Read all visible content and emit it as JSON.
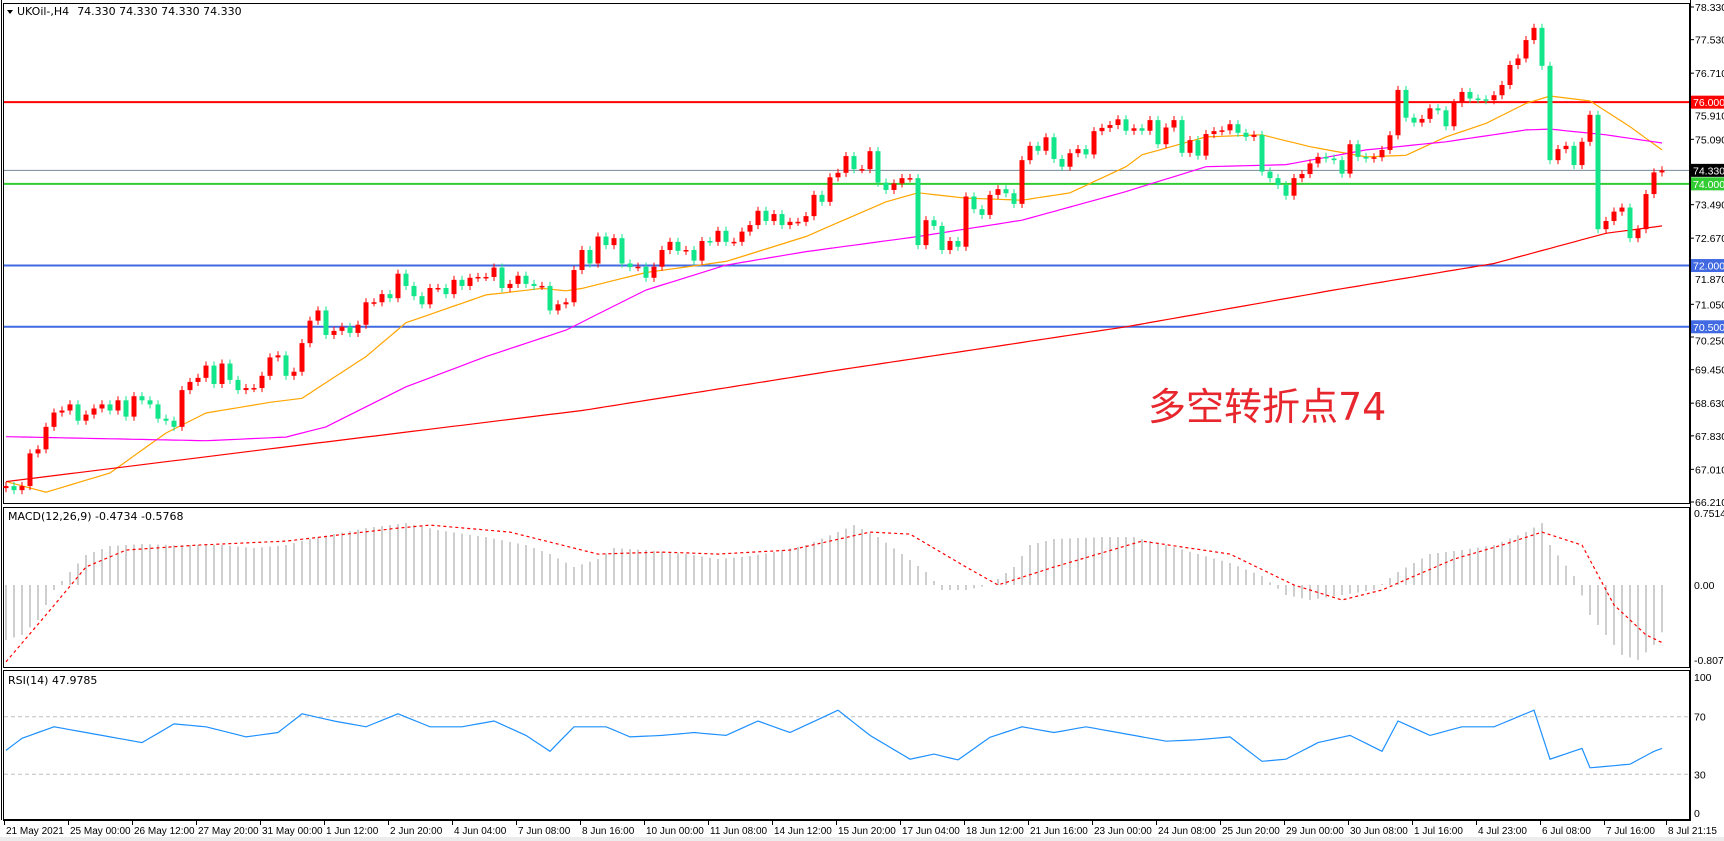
{
  "header": {
    "menu_icon": "triangle-down-icon",
    "symbol_label": "UKOil-,H4",
    "ohlc": "74.330 74.330 74.330 74.330"
  },
  "annotation": {
    "text": "多空转折点74",
    "color": "#e8262e"
  },
  "chart_data": [
    {
      "type": "candlestick",
      "panel": "price",
      "timeframe": "H4",
      "symbol": "UKOil-",
      "colors": {
        "up": "#ff0000",
        "down": "#13e58a",
        "ma_fast": "#ffa500",
        "ma_mid": "#ff00ff",
        "ma_slow": "#ff0000"
      },
      "ylim": [
        66.21,
        78.33
      ],
      "y_ticks": [
        "78.330",
        "77.530",
        "76.710",
        "75.910",
        "75.090",
        "73.490",
        "72.670",
        "71.870",
        "71.050",
        "70.250",
        "69.450",
        "68.630",
        "67.830",
        "67.010",
        "66.210"
      ],
      "first_open": 66.55,
      "closes": [
        66.6,
        66.5,
        66.6,
        67.4,
        67.5,
        68.05,
        68.4,
        68.45,
        68.6,
        68.2,
        68.35,
        68.5,
        68.6,
        68.45,
        68.7,
        68.3,
        68.8,
        68.7,
        68.6,
        68.25,
        68.2,
        68.05,
        68.95,
        69.15,
        69.25,
        69.55,
        69.1,
        69.6,
        69.2,
        68.95,
        69.0,
        69.0,
        69.3,
        69.75,
        69.8,
        69.3,
        69.4,
        70.1,
        70.65,
        70.9,
        70.3,
        70.4,
        70.5,
        70.35,
        70.55,
        71.1,
        71.1,
        71.3,
        71.2,
        71.8,
        71.5,
        71.25,
        71.05,
        71.45,
        71.45,
        71.3,
        71.65,
        71.5,
        71.7,
        71.72,
        71.72,
        71.95,
        71.45,
        71.55,
        71.75,
        71.55,
        71.5,
        71.5,
        70.9,
        71.05,
        71.1,
        71.89,
        72.38,
        72.05,
        72.71,
        72.5,
        72.67,
        72.05,
        71.96,
        71.97,
        71.7,
        71.97,
        72.38,
        72.58,
        72.36,
        72.38,
        72.12,
        72.6,
        72.58,
        72.85,
        72.58,
        72.58,
        72.83,
        72.99,
        73.34,
        73.09,
        73.26,
        72.99,
        73.07,
        73.07,
        73.21,
        73.73,
        73.56,
        74.16,
        74.27,
        74.68,
        74.36,
        74.36,
        74.8,
        74.03,
        73.85,
        74.01,
        74.14,
        74.14,
        72.5,
        73.11,
        72.97,
        72.38,
        72.6,
        72.46,
        73.69,
        73.38,
        73.24,
        73.73,
        73.87,
        73.77,
        73.51,
        74.58,
        74.93,
        74.81,
        75.14,
        74.61,
        74.42,
        74.75,
        74.85,
        74.72,
        75.29,
        75.37,
        75.44,
        75.58,
        75.3,
        75.36,
        75.3,
        75.56,
        74.97,
        75.38,
        75.56,
        74.76,
        75.07,
        74.69,
        75.22,
        75.29,
        75.31,
        75.46,
        75.25,
        75.15,
        75.2,
        74.3,
        74.14,
        73.97,
        73.71,
        74.14,
        74.24,
        74.5,
        74.66,
        74.62,
        74.58,
        74.25,
        74.97,
        74.66,
        74.62,
        74.65,
        74.83,
        75.19,
        76.3,
        75.62,
        75.5,
        75.59,
        75.85,
        75.8,
        75.41,
        75.98,
        76.25,
        76.09,
        76.07,
        76.05,
        76.17,
        76.42,
        76.91,
        77.07,
        77.52,
        77.82,
        76.89,
        74.58,
        74.85,
        74.93,
        74.46,
        75.03,
        75.69,
        72.89,
        73.09,
        73.32,
        73.42,
        72.67,
        72.89,
        73.75,
        74.28,
        74.33
      ],
      "moving_averages": [
        {
          "color": "#ffa500",
          "points": [
            [
              0,
              66.71
            ],
            [
              5,
              66.45
            ],
            [
              13,
              66.92
            ],
            [
              20,
              67.9
            ],
            [
              25,
              68.39
            ],
            [
              33,
              68.65
            ],
            [
              37,
              68.75
            ],
            [
              45,
              69.77
            ],
            [
              50,
              70.6
            ],
            [
              60,
              71.28
            ],
            [
              67,
              71.44
            ],
            [
              70,
              71.38
            ],
            [
              72,
              71.44
            ],
            [
              80,
              71.83
            ],
            [
              90,
              72.1
            ],
            [
              100,
              72.71
            ],
            [
              110,
              73.56
            ],
            [
              114,
              73.78
            ],
            [
              120,
              73.65
            ],
            [
              127,
              73.6
            ],
            [
              133,
              73.78
            ],
            [
              140,
              74.42
            ],
            [
              142,
              74.71
            ],
            [
              150,
              75.15
            ],
            [
              157,
              75.2
            ],
            [
              163,
              74.91
            ],
            [
              170,
              74.66
            ],
            [
              175,
              74.7
            ],
            [
              180,
              75.15
            ],
            [
              185,
              75.48
            ],
            [
              190,
              75.97
            ],
            [
              193,
              76.15
            ],
            [
              198,
              76.03
            ],
            [
              203,
              75.4
            ],
            [
              207,
              74.83
            ]
          ]
        },
        {
          "color": "#ff00ff",
          "points": [
            [
              0,
              67.81
            ],
            [
              25,
              67.71
            ],
            [
              35,
              67.8
            ],
            [
              40,
              68.05
            ],
            [
              50,
              69.03
            ],
            [
              60,
              69.77
            ],
            [
              70,
              70.42
            ],
            [
              80,
              71.4
            ],
            [
              90,
              72.01
            ],
            [
              100,
              72.34
            ],
            [
              114,
              72.71
            ],
            [
              127,
              73.11
            ],
            [
              140,
              73.81
            ],
            [
              150,
              74.42
            ],
            [
              160,
              74.47
            ],
            [
              170,
              74.83
            ],
            [
              180,
              75.03
            ],
            [
              190,
              75.32
            ],
            [
              193,
              75.34
            ],
            [
              200,
              75.2
            ],
            [
              207,
              75.0
            ]
          ]
        },
        {
          "color": "#ff0000",
          "points": [
            [
              0,
              66.71
            ],
            [
              35,
              67.56
            ],
            [
              72,
              68.45
            ],
            [
              104,
              69.44
            ],
            [
              120,
              69.91
            ],
            [
              140,
              70.5
            ],
            [
              166,
              71.4
            ],
            [
              186,
              72.05
            ],
            [
              200,
              72.79
            ],
            [
              207,
              72.97
            ]
          ]
        }
      ],
      "horizontal_levels": [
        {
          "price": "76.000",
          "value": 76.0,
          "color": "#ff0000"
        },
        {
          "price": "74.000",
          "value": 74.0,
          "color": "#32cd32"
        },
        {
          "price": "72.000",
          "value": 72.0,
          "color": "#4169e1"
        },
        {
          "price": "70.500",
          "value": 70.5,
          "color": "#4169e1"
        }
      ],
      "current_price": {
        "label": "74.330",
        "value": 74.33,
        "color": "#778899"
      }
    },
    {
      "type": "histogram+line",
      "panel": "macd",
      "title": "MACD(12,26,9) -0.4734 -0.5768",
      "ylim": [
        -0.8076,
        0.7514
      ],
      "y_ticks": [
        "0.7514",
        "0.00",
        "-0.8076"
      ],
      "histogram_color": "#bdbdbd",
      "signal_color": "#ff0000",
      "histogram": [
        [
          0,
          -0.55
        ],
        [
          2,
          -0.5
        ],
        [
          4,
          -0.35
        ],
        [
          5,
          -0.2
        ],
        [
          6,
          -0.05
        ],
        [
          8,
          0.13
        ],
        [
          10,
          0.3
        ],
        [
          13,
          0.39
        ],
        [
          17,
          0.41
        ],
        [
          21,
          0.4
        ],
        [
          27,
          0.4
        ],
        [
          31,
          0.37
        ],
        [
          35,
          0.4
        ],
        [
          39,
          0.48
        ],
        [
          45,
          0.57
        ],
        [
          50,
          0.62
        ],
        [
          54,
          0.55
        ],
        [
          60,
          0.48
        ],
        [
          65,
          0.4
        ],
        [
          68,
          0.31
        ],
        [
          71,
          0.18
        ],
        [
          74,
          0.26
        ],
        [
          76,
          0.37
        ],
        [
          80,
          0.35
        ],
        [
          85,
          0.31
        ],
        [
          89,
          0.26
        ],
        [
          93,
          0.29
        ],
        [
          96,
          0.33
        ],
        [
          100,
          0.4
        ],
        [
          104,
          0.53
        ],
        [
          106,
          0.6
        ],
        [
          109,
          0.48
        ],
        [
          112,
          0.31
        ],
        [
          115,
          0.13
        ],
        [
          117,
          -0.05
        ],
        [
          120,
          -0.05
        ],
        [
          123,
          0.0
        ],
        [
          126,
          0.18
        ],
        [
          128,
          0.4
        ],
        [
          131,
          0.46
        ],
        [
          137,
          0.48
        ],
        [
          141,
          0.48
        ],
        [
          145,
          0.4
        ],
        [
          149,
          0.31
        ],
        [
          153,
          0.22
        ],
        [
          157,
          0.09
        ],
        [
          160,
          -0.1
        ],
        [
          163,
          -0.15
        ],
        [
          167,
          -0.1
        ],
        [
          171,
          -0.05
        ],
        [
          174,
          0.13
        ],
        [
          178,
          0.31
        ],
        [
          182,
          0.35
        ],
        [
          186,
          0.4
        ],
        [
          190,
          0.53
        ],
        [
          192,
          0.62
        ],
        [
          193,
          0.4
        ],
        [
          196,
          0.09
        ],
        [
          198,
          -0.3
        ],
        [
          202,
          -0.7
        ],
        [
          204,
          -0.75
        ],
        [
          206,
          -0.6
        ],
        [
          207,
          -0.4734
        ]
      ],
      "signal": [
        [
          0,
          -0.77
        ],
        [
          5,
          -0.3
        ],
        [
          10,
          0.18
        ],
        [
          15,
          0.35
        ],
        [
          24,
          0.4
        ],
        [
          35,
          0.44
        ],
        [
          49,
          0.57
        ],
        [
          53,
          0.6
        ],
        [
          63,
          0.53
        ],
        [
          74,
          0.31
        ],
        [
          82,
          0.33
        ],
        [
          89,
          0.31
        ],
        [
          98,
          0.35
        ],
        [
          108,
          0.53
        ],
        [
          113,
          0.51
        ],
        [
          120,
          0.18
        ],
        [
          124,
          0.0
        ],
        [
          131,
          0.18
        ],
        [
          142,
          0.44
        ],
        [
          153,
          0.31
        ],
        [
          161,
          0.0
        ],
        [
          167,
          -0.15
        ],
        [
          172,
          -0.05
        ],
        [
          181,
          0.26
        ],
        [
          187,
          0.4
        ],
        [
          192,
          0.53
        ],
        [
          197,
          0.4
        ],
        [
          201,
          -0.2
        ],
        [
          205,
          -0.5
        ],
        [
          207,
          -0.5768
        ]
      ]
    },
    {
      "type": "line",
      "panel": "rsi",
      "title": "RSI(14) 47.9785",
      "ylim": [
        0,
        100
      ],
      "y_ticks": [
        "100",
        "70",
        "30",
        "0"
      ],
      "levels": [
        70,
        30
      ],
      "color": "#1e90ff",
      "points": [
        [
          0,
          46.6
        ],
        [
          2,
          55
        ],
        [
          6,
          63
        ],
        [
          10,
          59
        ],
        [
          15,
          54
        ],
        [
          17,
          52
        ],
        [
          21,
          65
        ],
        [
          25,
          63
        ],
        [
          30,
          56
        ],
        [
          34,
          59
        ],
        [
          37,
          72
        ],
        [
          41,
          67
        ],
        [
          45,
          63
        ],
        [
          49,
          72
        ],
        [
          53,
          63
        ],
        [
          57,
          63
        ],
        [
          61,
          67
        ],
        [
          65,
          57
        ],
        [
          68,
          46
        ],
        [
          71,
          63
        ],
        [
          75,
          63
        ],
        [
          78,
          56
        ],
        [
          82,
          57
        ],
        [
          86,
          59
        ],
        [
          90,
          57
        ],
        [
          94,
          67
        ],
        [
          98,
          59
        ],
        [
          104,
          74.5
        ],
        [
          108,
          57
        ],
        [
          113,
          40.5
        ],
        [
          116,
          44
        ],
        [
          119,
          40
        ],
        [
          123,
          55.7
        ],
        [
          127,
          63
        ],
        [
          131,
          59
        ],
        [
          135,
          63
        ],
        [
          141,
          57
        ],
        [
          145,
          53
        ],
        [
          149,
          54
        ],
        [
          153,
          56
        ],
        [
          157,
          39
        ],
        [
          160,
          40.5
        ],
        [
          164,
          52
        ],
        [
          168,
          57
        ],
        [
          172,
          46
        ],
        [
          174,
          67
        ],
        [
          178,
          57
        ],
        [
          182,
          63
        ],
        [
          186,
          63
        ],
        [
          191,
          74.5
        ],
        [
          193,
          40.5
        ],
        [
          197,
          48
        ],
        [
          198,
          34.5
        ],
        [
          203,
          37
        ],
        [
          206,
          46
        ],
        [
          207,
          47.98
        ]
      ]
    }
  ],
  "time_axis": [
    "21 May 2021",
    "25 May 00:00",
    "26 May 12:00",
    "27 May 20:00",
    "31 May 00:00",
    "1 Jun 12:00",
    "2 Jun 20:00",
    "4 Jun 04:00",
    "7 Jun 08:00",
    "8 Jun 16:00",
    "10 Jun 00:00",
    "11 Jun 08:00",
    "14 Jun 12:00",
    "15 Jun 20:00",
    "17 Jun 04:00",
    "18 Jun 12:00",
    "21 Jun 16:00",
    "23 Jun 00:00",
    "24 Jun 08:00",
    "25 Jun 20:00",
    "29 Jun 00:00",
    "30 Jun 08:00",
    "1 Jul 16:00",
    "4 Jul 23:00",
    "6 Jul 08:00",
    "7 Jul 16:00",
    "8 Jul 21:15"
  ]
}
